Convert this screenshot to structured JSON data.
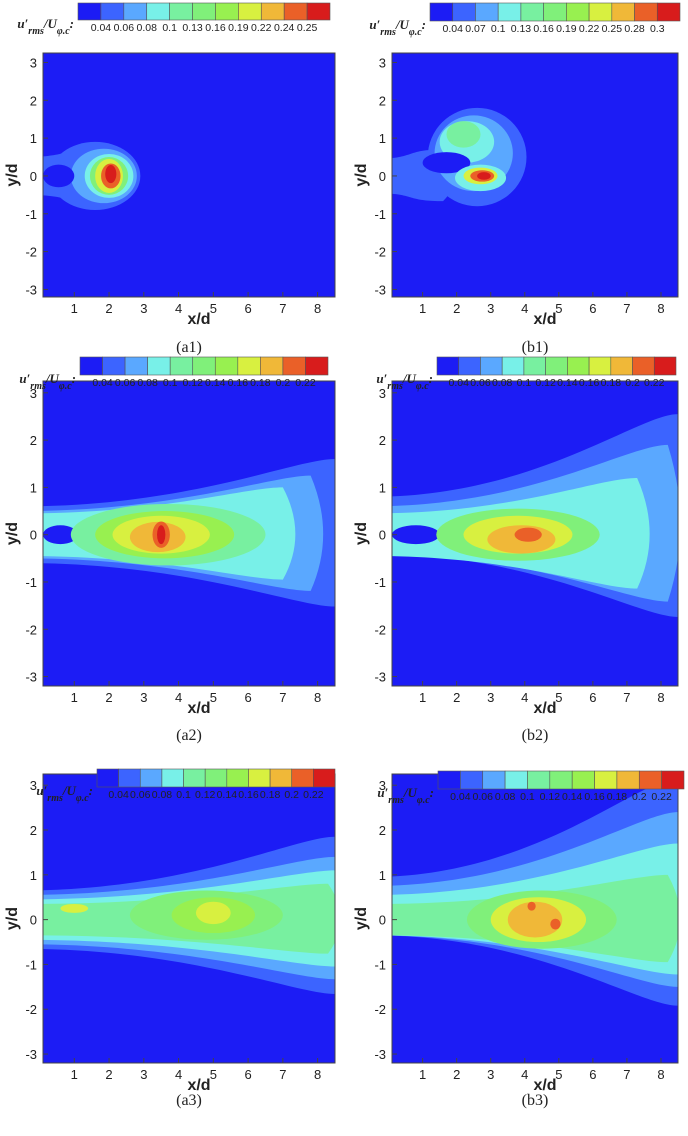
{
  "chart_data": [
    {
      "type": "contour",
      "caption": "(a1)",
      "x_label": "x/d",
      "y_label": "y/d",
      "xlim": [
        0.1,
        8.5
      ],
      "ylim": [
        -3.2,
        3.25
      ],
      "xticks": [
        1,
        2,
        3,
        4,
        5,
        6,
        7,
        8
      ],
      "yticks": [
        3,
        2,
        1,
        0,
        -1,
        -2,
        -3
      ],
      "colorbar_label": [
        "u′",
        "rms",
        "/U",
        "φ.c",
        ":"
      ],
      "colorbar_ticks": [
        0.04,
        0.06,
        0.08,
        0.1,
        0.13,
        0.16,
        0.19,
        0.22,
        0.24,
        0.25
      ],
      "colors": [
        "#1c1cf5",
        "#3c64ff",
        "#5aa8ff",
        "#78f0e8",
        "#78f0a0",
        "#80f07a",
        "#98f050",
        "#d8f040",
        "#f0b838",
        "#ea6028",
        "#d81c1c"
      ]
    },
    {
      "type": "contour",
      "caption": "(b1)",
      "x_label": "x/d",
      "y_label": "y/d",
      "xlim": [
        0.1,
        8.5
      ],
      "ylim": [
        -3.2,
        3.25
      ],
      "xticks": [
        1,
        2,
        3,
        4,
        5,
        6,
        7,
        8
      ],
      "yticks": [
        3,
        2,
        1,
        0,
        -1,
        -2,
        -3
      ],
      "colorbar_label": [
        "u′",
        "rms",
        "/U",
        "φ.c",
        ":"
      ],
      "colorbar_ticks": [
        0.04,
        0.07,
        0.1,
        0.13,
        0.16,
        0.19,
        0.22,
        0.25,
        0.28,
        0.3
      ],
      "colors": [
        "#1c1cf5",
        "#3c64ff",
        "#5aa8ff",
        "#78f0e8",
        "#78f0a0",
        "#80f07a",
        "#98f050",
        "#d8f040",
        "#f0b838",
        "#ea6028",
        "#d81c1c"
      ]
    },
    {
      "type": "contour",
      "caption": "(a2)",
      "x_label": "x/d",
      "y_label": "y/d",
      "xlim": [
        0.1,
        8.5
      ],
      "ylim": [
        -3.2,
        3.25
      ],
      "xticks": [
        1,
        2,
        3,
        4,
        5,
        6,
        7,
        8
      ],
      "yticks": [
        3,
        2,
        1,
        0,
        -1,
        -2,
        -3
      ],
      "colorbar_label": [
        "u′",
        "rms",
        "/U",
        "φ.c",
        ":"
      ],
      "colorbar_ticks": [
        0.04,
        0.06,
        0.08,
        0.1,
        0.12,
        0.14,
        0.16,
        0.18,
        0.2,
        0.22
      ],
      "colors": [
        "#1c1cf5",
        "#3c64ff",
        "#5aa8ff",
        "#78f0e8",
        "#78f0a0",
        "#80f07a",
        "#98f050",
        "#d8f040",
        "#f0b838",
        "#ea6028",
        "#d81c1c"
      ]
    },
    {
      "type": "contour",
      "caption": "(b2)",
      "x_label": "x/d",
      "y_label": "y/d",
      "xlim": [
        0.1,
        8.5
      ],
      "ylim": [
        -3.2,
        3.25
      ],
      "xticks": [
        1,
        2,
        3,
        4,
        5,
        6,
        7,
        8
      ],
      "yticks": [
        3,
        2,
        1,
        0,
        -1,
        -2,
        -3
      ],
      "colorbar_label": [
        "u′",
        "rms",
        "/U",
        "φ.c",
        ":"
      ],
      "colorbar_ticks": [
        0.04,
        0.06,
        0.08,
        0.1,
        0.12,
        0.14,
        0.16,
        0.18,
        0.2,
        0.22
      ],
      "colors": [
        "#1c1cf5",
        "#3c64ff",
        "#5aa8ff",
        "#78f0e8",
        "#78f0a0",
        "#80f07a",
        "#98f050",
        "#d8f040",
        "#f0b838",
        "#ea6028",
        "#d81c1c"
      ]
    },
    {
      "type": "contour",
      "caption": "(a3)",
      "x_label": "x/d",
      "y_label": "y/d",
      "xlim": [
        0.1,
        8.5
      ],
      "ylim": [
        -3.2,
        3.25
      ],
      "xticks": [
        1,
        2,
        3,
        4,
        5,
        6,
        7,
        8
      ],
      "yticks": [
        3,
        2,
        1,
        0,
        -1,
        -2,
        -3
      ],
      "colorbar_label": [
        "u′",
        "rms",
        "/U",
        "φ.c",
        ":"
      ],
      "colorbar_ticks": [
        0.04,
        0.06,
        0.08,
        0.1,
        0.12,
        0.14,
        0.16,
        0.18,
        0.2,
        0.22
      ],
      "colors": [
        "#1c1cf5",
        "#3c64ff",
        "#5aa8ff",
        "#78f0e8",
        "#78f0a0",
        "#80f07a",
        "#98f050",
        "#d8f040",
        "#f0b838",
        "#ea6028",
        "#d81c1c"
      ]
    },
    {
      "type": "contour",
      "caption": "(b3)",
      "x_label": "x/d",
      "y_label": "y/d",
      "xlim": [
        0.1,
        8.5
      ],
      "ylim": [
        -3.2,
        3.25
      ],
      "xticks": [
        1,
        2,
        3,
        4,
        5,
        6,
        7,
        8
      ],
      "yticks": [
        3,
        2,
        1,
        0,
        -1,
        -2,
        -3
      ],
      "colorbar_label": [
        "u′",
        "rms",
        "/U",
        "φ.c",
        ":"
      ],
      "colorbar_ticks": [
        0.04,
        0.06,
        0.08,
        0.1,
        0.12,
        0.14,
        0.16,
        0.18,
        0.2,
        0.22
      ],
      "colors": [
        "#1c1cf5",
        "#3c64ff",
        "#5aa8ff",
        "#78f0e8",
        "#78f0a0",
        "#80f07a",
        "#98f050",
        "#d8f040",
        "#f0b838",
        "#ea6028",
        "#d81c1c"
      ]
    }
  ]
}
